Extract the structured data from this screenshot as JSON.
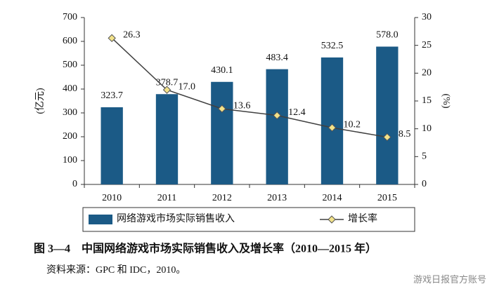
{
  "chart_data": {
    "type": "bar",
    "categories": [
      "2010",
      "2011",
      "2012",
      "2013",
      "2014",
      "2015"
    ],
    "series": [
      {
        "name": "网络游戏市场实际销售收入",
        "type": "bar",
        "color": "#1b5a86",
        "values": [
          323.7,
          378.7,
          430.1,
          483.4,
          532.5,
          578.0
        ],
        "value_labels": [
          "323.7",
          "378.7",
          "430.1",
          "483.4",
          "532.5",
          "578.0"
        ]
      },
      {
        "name": "增长率",
        "type": "line",
        "axis": "y2",
        "color": "#404040",
        "marker_color": "#f2e28a",
        "values": [
          26.3,
          17.0,
          13.6,
          12.4,
          10.2,
          8.5
        ],
        "value_labels": [
          "26.3",
          "17.0",
          "13.6",
          "12.4",
          "10.2",
          "8.5"
        ]
      }
    ],
    "y_label": "(亿元)",
    "y2_label": "(%)",
    "ylim": [
      0,
      700
    ],
    "yticks": [
      0,
      100,
      200,
      300,
      400,
      500,
      600,
      700
    ],
    "y2lim": [
      0,
      30
    ],
    "y2ticks": [
      0,
      5,
      10,
      15,
      20,
      25,
      30
    ],
    "grid": false,
    "legend": "bottom"
  },
  "figure_caption": "图 3—4　中国网络游戏市场实际销售收入及增长率（2010—2015 年）",
  "source_note": "资料来源：GPC 和 IDC，2010。",
  "watermark": "游戏日报官方账号"
}
